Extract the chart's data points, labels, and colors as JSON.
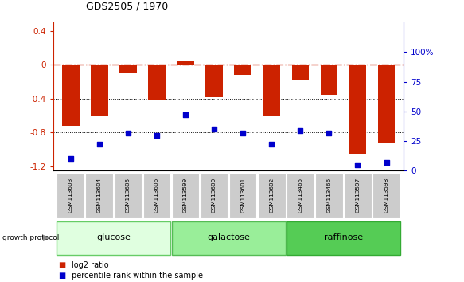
{
  "title": "GDS2505 / 1970",
  "samples": [
    "GSM113603",
    "GSM113604",
    "GSM113605",
    "GSM113606",
    "GSM113599",
    "GSM113600",
    "GSM113601",
    "GSM113602",
    "GSM113465",
    "GSM113466",
    "GSM113597",
    "GSM113598"
  ],
  "log2_ratio": [
    -0.72,
    -0.6,
    -0.1,
    -0.42,
    0.04,
    -0.38,
    -0.12,
    -0.6,
    -0.18,
    -0.35,
    -1.05,
    -0.92
  ],
  "percentile_rank": [
    10,
    22,
    32,
    30,
    47,
    35,
    32,
    22,
    34,
    32,
    5,
    7
  ],
  "bar_color": "#cc2200",
  "dot_color": "#0000cc",
  "zeroline_color": "#cc2200",
  "ylim_left": [
    -1.25,
    0.5
  ],
  "ylim_right": [
    0,
    125
  ],
  "yticks_left": [
    0.4,
    0.0,
    -0.4,
    -0.8,
    -1.2
  ],
  "yticks_right": [
    100,
    75,
    50,
    25,
    0
  ],
  "groups": [
    {
      "label": "glucose",
      "start": 0,
      "end": 4,
      "color": "#e0ffe0",
      "edge": "#66cc66"
    },
    {
      "label": "galactose",
      "start": 4,
      "end": 8,
      "color": "#99ee99",
      "edge": "#55bb55"
    },
    {
      "label": "raffinose",
      "start": 8,
      "end": 12,
      "color": "#55cc55",
      "edge": "#33aa33"
    }
  ],
  "legend_items": [
    {
      "color": "#cc2200",
      "label": "log2 ratio"
    },
    {
      "color": "#0000cc",
      "label": "percentile rank within the sample"
    }
  ],
  "background_color": "#ffffff",
  "bar_width": 0.6
}
